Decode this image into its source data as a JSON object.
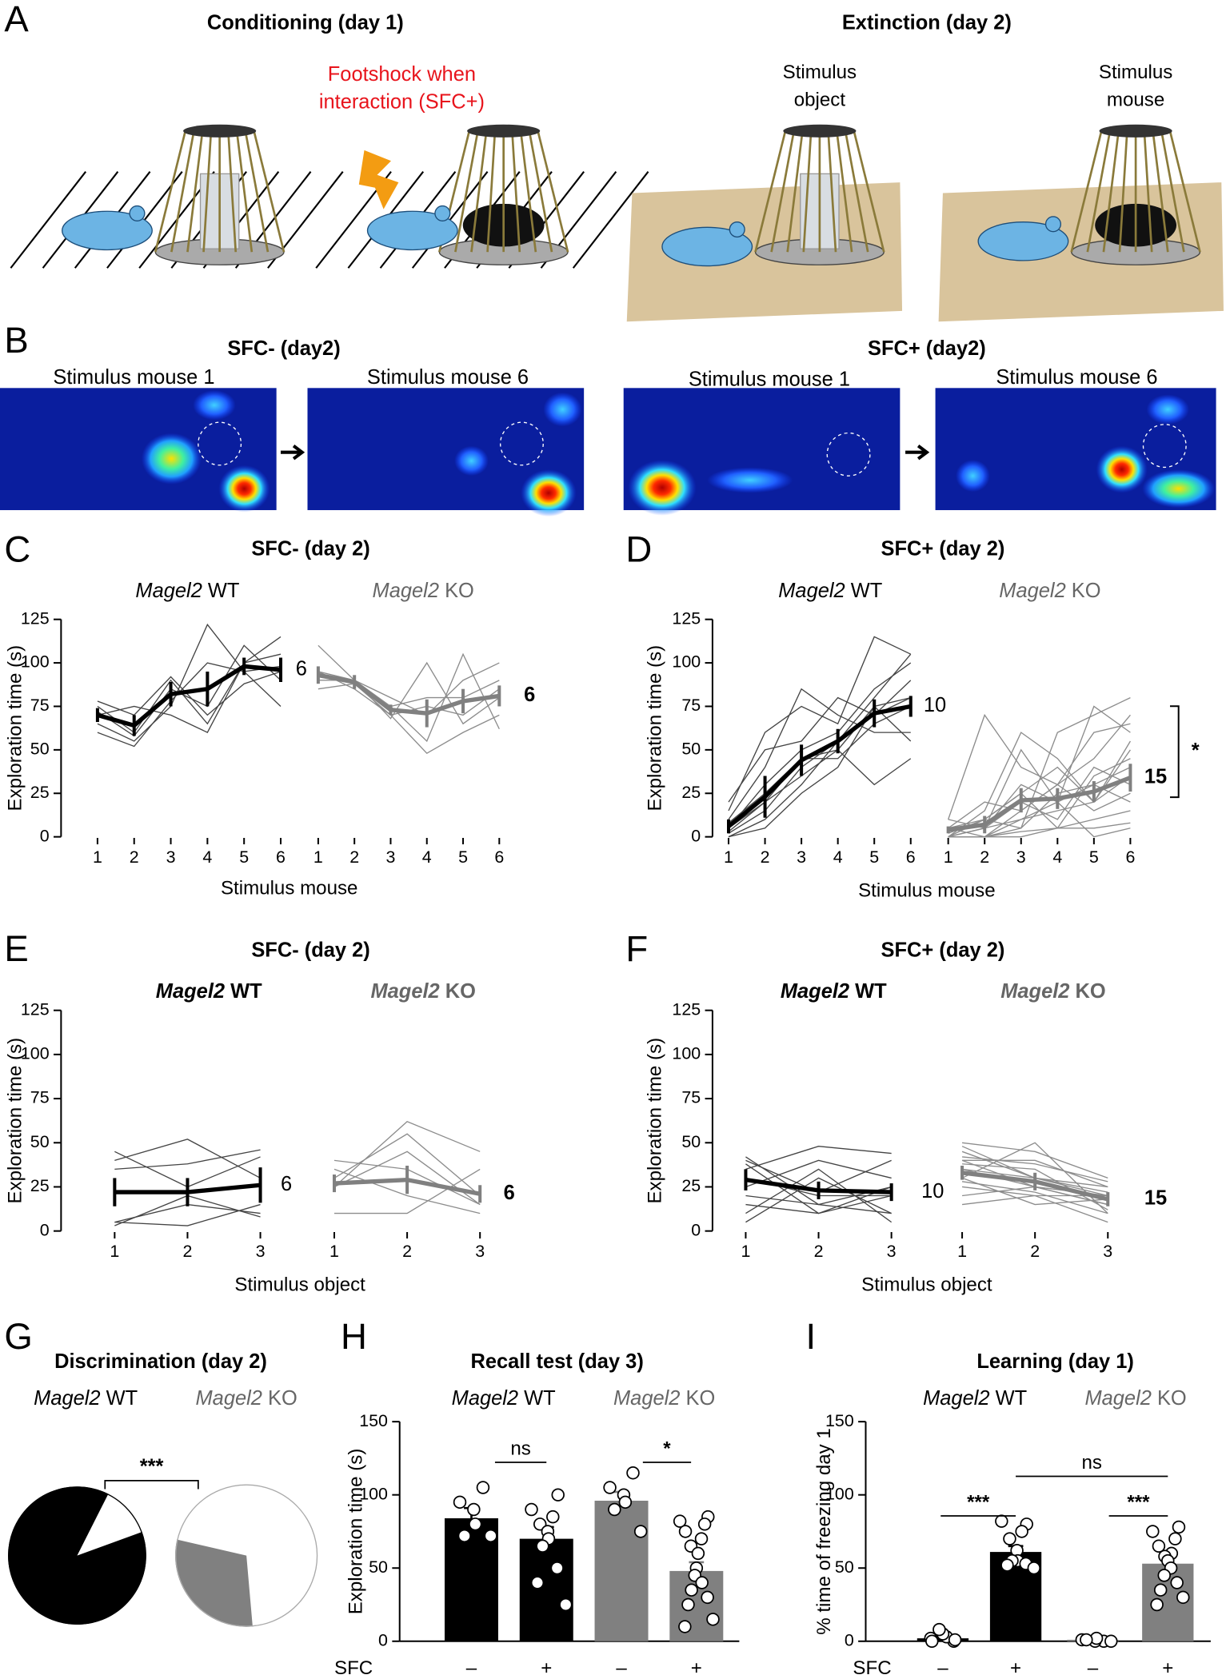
{
  "panel_a": {
    "letter": "A",
    "left_title": "Conditioning (day 1)",
    "annotation_lines": [
      "Footshock when",
      "interaction (SFC+)"
    ],
    "right_title": "Extinction (day 2)",
    "object_label_lines": [
      "Stimulus",
      "object"
    ],
    "mouse_label_lines": [
      "Stimulus",
      "mouse"
    ]
  },
  "panel_b": {
    "letter": "B",
    "left_title": "SFC- (day2)",
    "right_title": "SFC+ (day2)",
    "map_labels": [
      "Stimulus mouse 1",
      "Stimulus mouse 6",
      "Stimulus mouse 1",
      "Stimulus mouse 6"
    ]
  },
  "chart_data": [
    {
      "type": "line",
      "panel": "C",
      "title": "SFC- (day 2)",
      "gene": "Magel2",
      "ylabel": "Exploration time (s)",
      "xlabel": "Stimulus mouse",
      "x": [
        1,
        2,
        3,
        4,
        5,
        6
      ],
      "ylim": [
        0,
        125
      ],
      "yticks": [
        0,
        25,
        50,
        75,
        100,
        125
      ],
      "series": [
        {
          "name": "WT",
          "color": "#000000",
          "n": 6,
          "values": [
            70,
            64,
            82,
            85,
            98,
            96
          ],
          "errors": [
            4,
            6,
            7,
            10,
            5,
            7
          ],
          "individuals": [
            [
              65,
              55,
              75,
              122,
              95,
              75
            ],
            [
              75,
              60,
              90,
              65,
              100,
              115
            ],
            [
              72,
              58,
              85,
              75,
              110,
              90
            ],
            [
              60,
              52,
              78,
              100,
              95,
              98
            ],
            [
              70,
              75,
              70,
              60,
              100,
              105
            ],
            [
              78,
              70,
              92,
              70,
              88,
              95
            ]
          ]
        },
        {
          "name": "KO",
          "color": "#808080",
          "n": 6,
          "values": [
            93,
            89,
            73,
            71,
            78,
            81
          ],
          "errors": [
            5,
            4,
            3,
            8,
            7,
            6
          ],
          "individuals": [
            [
              110,
              90,
              75,
              55,
              105,
              62
            ],
            [
              95,
              85,
              70,
              48,
              60,
              70
            ],
            [
              92,
              88,
              75,
              80,
              80,
              90
            ],
            [
              90,
              90,
              80,
              70,
              90,
              100
            ],
            [
              85,
              88,
              70,
              75,
              70,
              85
            ],
            [
              95,
              90,
              68,
              100,
              65,
              80
            ]
          ]
        }
      ]
    },
    {
      "type": "line",
      "panel": "D",
      "title": "SFC+ (day 2)",
      "gene": "Magel2",
      "ylabel": "Exploration time (s)",
      "xlabel": "Stimulus mouse",
      "annotation": "*",
      "x": [
        1,
        2,
        3,
        4,
        5,
        6
      ],
      "ylim": [
        0,
        125
      ],
      "yticks": [
        0,
        25,
        50,
        75,
        100,
        125
      ],
      "series": [
        {
          "name": "WT",
          "color": "#000000",
          "n": 10,
          "values": [
            6,
            23,
            44,
            55,
            71,
            75
          ],
          "errors": [
            4,
            12,
            9,
            7,
            8,
            6
          ],
          "individuals": [
            [
              2,
              15,
              40,
              55,
              80,
              105
            ],
            [
              5,
              30,
              50,
              60,
              85,
              100
            ],
            [
              10,
              40,
              85,
              70,
              60,
              60
            ],
            [
              0,
              10,
              30,
              55,
              70,
              90
            ],
            [
              8,
              25,
              45,
              45,
              65,
              75
            ],
            [
              15,
              60,
              75,
              65,
              115,
              105
            ],
            [
              3,
              20,
              35,
              50,
              30,
              45
            ],
            [
              20,
              50,
              55,
              80,
              70,
              80
            ],
            [
              0,
              5,
              25,
              40,
              75,
              55
            ],
            [
              5,
              20,
              45,
              50,
              75,
              80
            ]
          ]
        },
        {
          "name": "KO",
          "color": "#808080",
          "n": 15,
          "values": [
            4,
            7,
            21,
            22,
            26,
            34
          ],
          "errors": [
            2,
            5,
            7,
            6,
            6,
            8
          ],
          "individuals": [
            [
              0,
              5,
              50,
              20,
              75,
              60
            ],
            [
              0,
              0,
              10,
              15,
              20,
              35
            ],
            [
              5,
              10,
              5,
              25,
              30,
              40
            ],
            [
              0,
              15,
              60,
              45,
              20,
              50
            ],
            [
              10,
              5,
              30,
              20,
              0,
              5
            ],
            [
              0,
              0,
              5,
              60,
              70,
              80
            ],
            [
              5,
              20,
              15,
              30,
              15,
              25
            ],
            [
              0,
              0,
              0,
              5,
              10,
              15
            ],
            [
              2,
              10,
              25,
              5,
              35,
              45
            ],
            [
              0,
              5,
              10,
              20,
              30,
              20
            ],
            [
              0,
              0,
              3,
              5,
              5,
              8
            ],
            [
              10,
              70,
              40,
              30,
              60,
              65
            ],
            [
              0,
              5,
              20,
              10,
              40,
              30
            ],
            [
              5,
              0,
              15,
              30,
              45,
              70
            ],
            [
              0,
              10,
              25,
              40,
              20,
              55
            ]
          ]
        }
      ]
    },
    {
      "type": "line",
      "panel": "E",
      "title": "SFC- (day 2)",
      "gene": "Magel2",
      "ylabel": "Exploration time (s)",
      "xlabel": "Stimulus object",
      "x": [
        1,
        2,
        3
      ],
      "ylim": [
        0,
        125
      ],
      "yticks": [
        0,
        25,
        50,
        75,
        100,
        125
      ],
      "series": [
        {
          "name": "WT",
          "color": "#000000",
          "n": 6,
          "values": [
            22,
            22,
            26
          ],
          "errors": [
            8,
            8,
            10
          ],
          "individuals": [
            [
              40,
              52,
              30
            ],
            [
              35,
              38,
              46
            ],
            [
              45,
              25,
              42
            ],
            [
              5,
              3,
              15
            ],
            [
              5,
              15,
              10
            ],
            [
              3,
              20,
              8
            ]
          ]
        },
        {
          "name": "KO",
          "color": "#808080",
          "n": 6,
          "values": [
            27,
            29,
            21
          ],
          "errors": [
            5,
            8,
            5
          ],
          "individuals": [
            [
              25,
              62,
              45
            ],
            [
              30,
              55,
              20
            ],
            [
              40,
              35,
              15
            ],
            [
              10,
              10,
              35
            ],
            [
              25,
              45,
              15
            ],
            [
              35,
              20,
              10
            ]
          ]
        }
      ]
    },
    {
      "type": "line",
      "panel": "F",
      "title": "SFC+ (day 2)",
      "gene": "Magel2",
      "ylabel": "Exploration time (s)",
      "xlabel": "Stimulus object",
      "x": [
        1,
        2,
        3
      ],
      "ylim": [
        0,
        125
      ],
      "yticks": [
        0,
        25,
        50,
        75,
        100,
        125
      ],
      "series": [
        {
          "name": "WT",
          "color": "#000000",
          "n": 10,
          "values": [
            29,
            23,
            22
          ],
          "errors": [
            6,
            5,
            5
          ],
          "individuals": [
            [
              40,
              22,
              40
            ],
            [
              35,
              48,
              44
            ],
            [
              30,
              20,
              20
            ],
            [
              10,
              35,
              5
            ],
            [
              5,
              30,
              10
            ],
            [
              38,
              10,
              25
            ],
            [
              25,
              40,
              30
            ],
            [
              15,
              10,
              20
            ],
            [
              42,
              15,
              25
            ],
            [
              20,
              15,
              10
            ]
          ]
        },
        {
          "name": "KO",
          "color": "#808080",
          "n": 15,
          "values": [
            33,
            28,
            18
          ],
          "errors": [
            4,
            5,
            4
          ],
          "individuals": [
            [
              50,
              45,
              30
            ],
            [
              45,
              30,
              20
            ],
            [
              40,
              40,
              25
            ],
            [
              35,
              25,
              15
            ],
            [
              30,
              50,
              10
            ],
            [
              25,
              20,
              20
            ],
            [
              38,
              35,
              12
            ],
            [
              48,
              30,
              22
            ],
            [
              20,
              25,
              15
            ],
            [
              30,
              15,
              18
            ],
            [
              42,
              38,
              28
            ],
            [
              28,
              22,
              10
            ],
            [
              35,
              30,
              25
            ],
            [
              15,
              20,
              5
            ],
            [
              40,
              25,
              20
            ]
          ]
        }
      ]
    },
    {
      "type": "pie",
      "panel": "G",
      "title": "Discrimination (day 2)",
      "gene": "Magel2",
      "annotation": "***",
      "series": [
        {
          "name": "WT",
          "values": [
            88,
            12
          ],
          "colors": [
            "#000000",
            "#ffffff"
          ]
        },
        {
          "name": "KO",
          "values": [
            30,
            70
          ],
          "colors": [
            "#808080",
            "#ffffff"
          ]
        }
      ]
    },
    {
      "type": "bar",
      "panel": "H",
      "title": "Recall test (day 3)",
      "gene": "Magel2",
      "ylabel": "Exploration time (s)",
      "row_label": "SFC",
      "groups": [
        "WT",
        "KO"
      ],
      "categories": [
        "–",
        "+",
        "–",
        "+"
      ],
      "values": [
        84,
        70,
        96,
        48
      ],
      "errors": [
        7,
        8,
        6,
        6
      ],
      "colors": [
        "#000000",
        "#000000",
        "#808080",
        "#808080"
      ],
      "points": [
        [
          105,
          95,
          90,
          80,
          72,
          72
        ],
        [
          100,
          90,
          85,
          80,
          75,
          70,
          65,
          50,
          40,
          25
        ],
        [
          115,
          105,
          100,
          95,
          90,
          75
        ],
        [
          85,
          82,
          80,
          75,
          70,
          65,
          60,
          50,
          45,
          40,
          35,
          30,
          25,
          15,
          10
        ]
      ],
      "ylim": [
        0,
        150
      ],
      "yticks": [
        0,
        50,
        100,
        150
      ],
      "annotations": [
        "ns",
        "*"
      ]
    },
    {
      "type": "bar",
      "panel": "I",
      "title": "Learning (day 1)",
      "gene": "Magel2",
      "ylabel": "% time of freezing day 1",
      "row_label": "SFC",
      "groups": [
        "WT",
        "KO"
      ],
      "categories": [
        "–",
        "+",
        "–",
        "+"
      ],
      "values": [
        2,
        61,
        1,
        53
      ],
      "errors": [
        1,
        4,
        0.5,
        6
      ],
      "colors": [
        "#000000",
        "#000000",
        "#808080",
        "#808080"
      ],
      "points": [
        [
          0,
          2,
          3,
          5,
          8,
          1,
          0
        ],
        [
          80,
          82,
          75,
          70,
          62,
          55,
          55,
          53,
          52,
          50
        ],
        [
          0,
          1,
          0,
          2,
          1,
          0
        ],
        [
          78,
          75,
          70,
          65,
          60,
          58,
          55,
          50,
          45,
          40,
          35,
          30,
          25
        ]
      ],
      "ylim": [
        0,
        150
      ],
      "yticks": [
        0,
        50,
        100,
        150
      ],
      "annotations": [
        "***",
        "***",
        "ns"
      ]
    }
  ]
}
